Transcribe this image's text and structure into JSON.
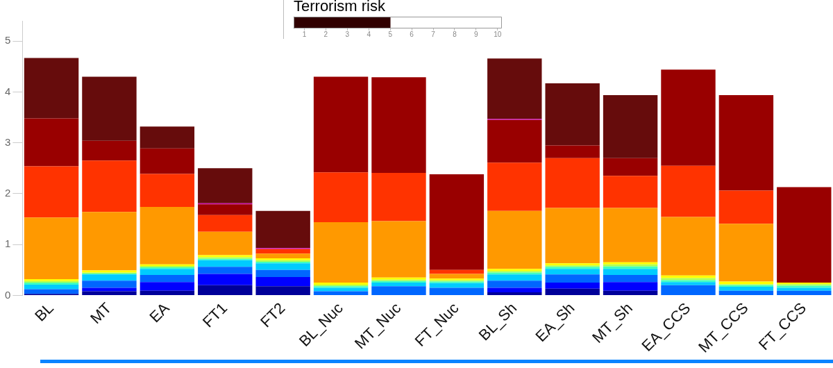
{
  "chart_data": [
    {
      "type": "bar",
      "stacked": true,
      "categories": [
        "BL",
        "MT",
        "EA",
        "FT1",
        "FT2",
        "BL_Nuc",
        "MT_Nuc",
        "FT_Nuc",
        "BL_Sh",
        "EA_Sh",
        "MT_Sh",
        "EA_CCS",
        "MT_CCS",
        "FT_CCS"
      ],
      "ylim": [
        0,
        5.4
      ],
      "yticks": [
        0,
        1,
        2,
        3,
        4,
        5
      ],
      "grid": false,
      "legend": false,
      "series": [
        {
          "color": "#000099",
          "values": [
            0.03,
            0.08,
            0.09,
            0.2,
            0.18,
            0,
            0,
            0,
            0.06,
            0.13,
            0.09,
            0,
            0,
            0
          ]
        },
        {
          "color": "#0000ff",
          "values": [
            0,
            0.07,
            0.17,
            0.22,
            0.18,
            0,
            0,
            0,
            0.09,
            0.12,
            0.17,
            0,
            0,
            0
          ]
        },
        {
          "color": "#0066ff",
          "values": [
            0.09,
            0.14,
            0.14,
            0.14,
            0.14,
            0.08,
            0.18,
            0.15,
            0.14,
            0.16,
            0.14,
            0.2,
            0.09,
            0.09
          ]
        },
        {
          "color": "#00ccff",
          "values": [
            0.09,
            0.12,
            0.12,
            0.13,
            0.13,
            0.07,
            0.07,
            0.09,
            0.12,
            0.11,
            0.12,
            0.06,
            0.08,
            0.06
          ]
        },
        {
          "color": "#40ffc0",
          "values": [
            0.04,
            0.02,
            0.03,
            0.03,
            0.03,
            0.03,
            0.03,
            0.03,
            0.04,
            0.04,
            0.05,
            0.04,
            0.03,
            0.04
          ]
        },
        {
          "color": "#b0ff50",
          "values": [
            0.03,
            0.02,
            0.03,
            0.03,
            0.03,
            0.03,
            0.03,
            0.03,
            0.03,
            0.03,
            0.04,
            0.04,
            0.02,
            0.03
          ]
        },
        {
          "color": "#ffff00",
          "values": [
            0.04,
            0.04,
            0.03,
            0.04,
            0.04,
            0.04,
            0.04,
            0.03,
            0.04,
            0.04,
            0.04,
            0.05,
            0.05,
            0.03
          ]
        },
        {
          "color": "#ff9900",
          "values": [
            1.21,
            1.15,
            1.13,
            0.46,
            0.09,
            1.19,
            1.11,
            0.09,
            1.14,
            1.09,
            1.07,
            1.15,
            1.14,
            0
          ]
        },
        {
          "color": "#ff3300",
          "values": [
            1.01,
            1.01,
            0.65,
            0.33,
            0.09,
            0.98,
            0.95,
            0.08,
            0.95,
            0.98,
            0.63,
            1.01,
            0.65,
            0
          ]
        },
        {
          "color": "#990000",
          "values": [
            0.94,
            0.39,
            0.5,
            0.21,
            0,
            1.88,
            1.88,
            1.88,
            0.84,
            0.25,
            0.35,
            1.89,
            1.88,
            1.88
          ]
        },
        {
          "color": "#cc00aa",
          "values": [
            0,
            0,
            0,
            0.02,
            0.02,
            0,
            0,
            0,
            0.02,
            0,
            0,
            0,
            0,
            0
          ]
        },
        {
          "color": "#660c0c",
          "values": [
            1.19,
            1.26,
            0.43,
            0.69,
            0.73,
            0,
            0,
            0,
            1.19,
            1.22,
            1.24,
            0,
            0,
            0
          ]
        }
      ]
    },
    {
      "type": "bar",
      "orientation": "horizontal",
      "title": "Terrorism risk",
      "categories": [
        null
      ],
      "base": [
        0.5
      ],
      "values": [
        4.5
      ],
      "color": "#300000",
      "xlim": [
        0.5,
        10.2
      ],
      "xticks": [
        1,
        2,
        3,
        4,
        5,
        6,
        7,
        8,
        9,
        10
      ],
      "grid": false,
      "legend": false
    }
  ]
}
